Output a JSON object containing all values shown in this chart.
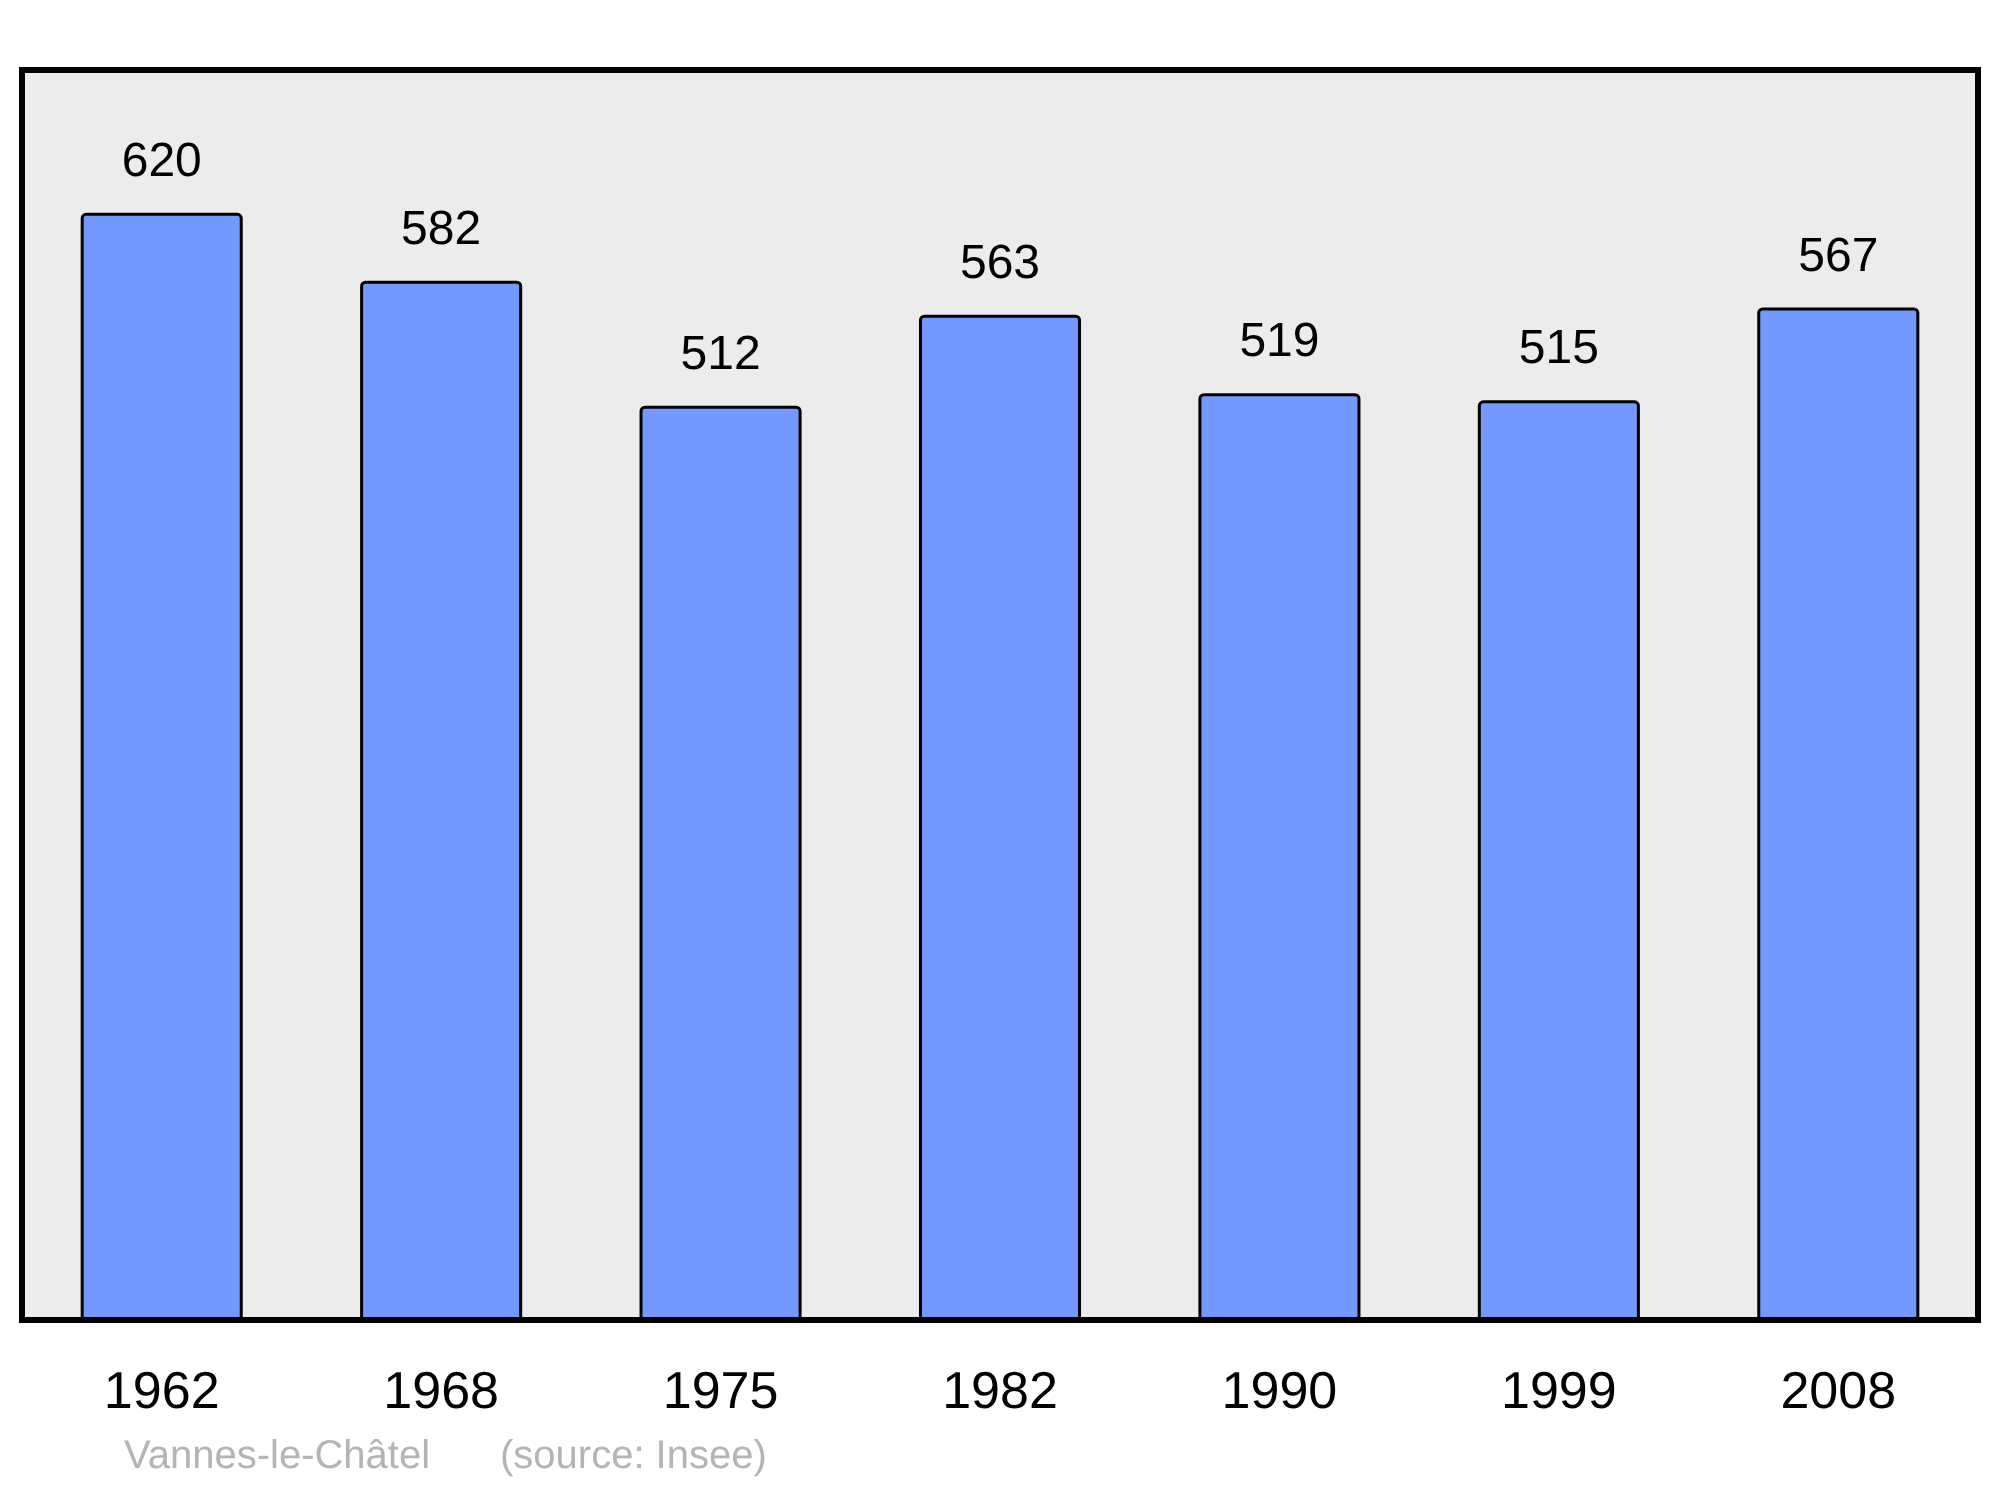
{
  "chart_data": {
    "type": "bar",
    "categories": [
      "1962",
      "1968",
      "1975",
      "1982",
      "1990",
      "1999",
      "2008"
    ],
    "values": [
      620,
      582,
      512,
      563,
      519,
      515,
      567
    ],
    "color": "#7399ff",
    "data_labels": true,
    "annotations": [
      "Vannes-le-Châtel",
      "(source: Insee)"
    ]
  }
}
